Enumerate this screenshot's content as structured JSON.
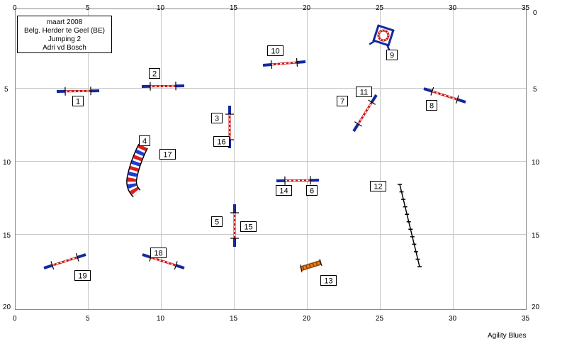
{
  "info": {
    "date": "maart 2008",
    "location": "Belg. Herder te Geel (BE)",
    "course": "Jumping 2",
    "judge": "Adri vd Bosch"
  },
  "credit": "Agility Blues",
  "axes": {
    "x_ticks": [
      "0",
      "5",
      "10",
      "15",
      "20",
      "25",
      "30",
      "35"
    ],
    "y_ticks": [
      "0",
      "5",
      "10",
      "15",
      "20"
    ]
  },
  "colors": {
    "pole_blue": "#1428a0",
    "pole_red": "#c81414",
    "tunnel_blue": "#1e3cd2",
    "tunnel_red": "#dc1e1e",
    "grid": "#c8c8c8"
  },
  "obstacles": [
    {
      "id": "jump-1",
      "type": "jump"
    },
    {
      "id": "jump-2",
      "type": "jump"
    },
    {
      "id": "jump-3-16",
      "type": "jump"
    },
    {
      "id": "tunnel-4-17",
      "type": "tunnel"
    },
    {
      "id": "jump-5-15",
      "type": "jump"
    },
    {
      "id": "jump-6-14",
      "type": "jump"
    },
    {
      "id": "jump-7-11",
      "type": "jump"
    },
    {
      "id": "jump-8",
      "type": "jump"
    },
    {
      "id": "tyre-9",
      "type": "tyre"
    },
    {
      "id": "jump-10",
      "type": "jump"
    },
    {
      "id": "weave-12",
      "type": "weave"
    },
    {
      "id": "long-jump-13",
      "type": "long-jump"
    },
    {
      "id": "jump-18",
      "type": "jump"
    },
    {
      "id": "jump-19",
      "type": "jump"
    }
  ],
  "numbers": [
    "1",
    "2",
    "3",
    "4",
    "5",
    "6",
    "7",
    "8",
    "9",
    "10",
    "11",
    "12",
    "13",
    "14",
    "15",
    "16",
    "17",
    "18",
    "19"
  ]
}
